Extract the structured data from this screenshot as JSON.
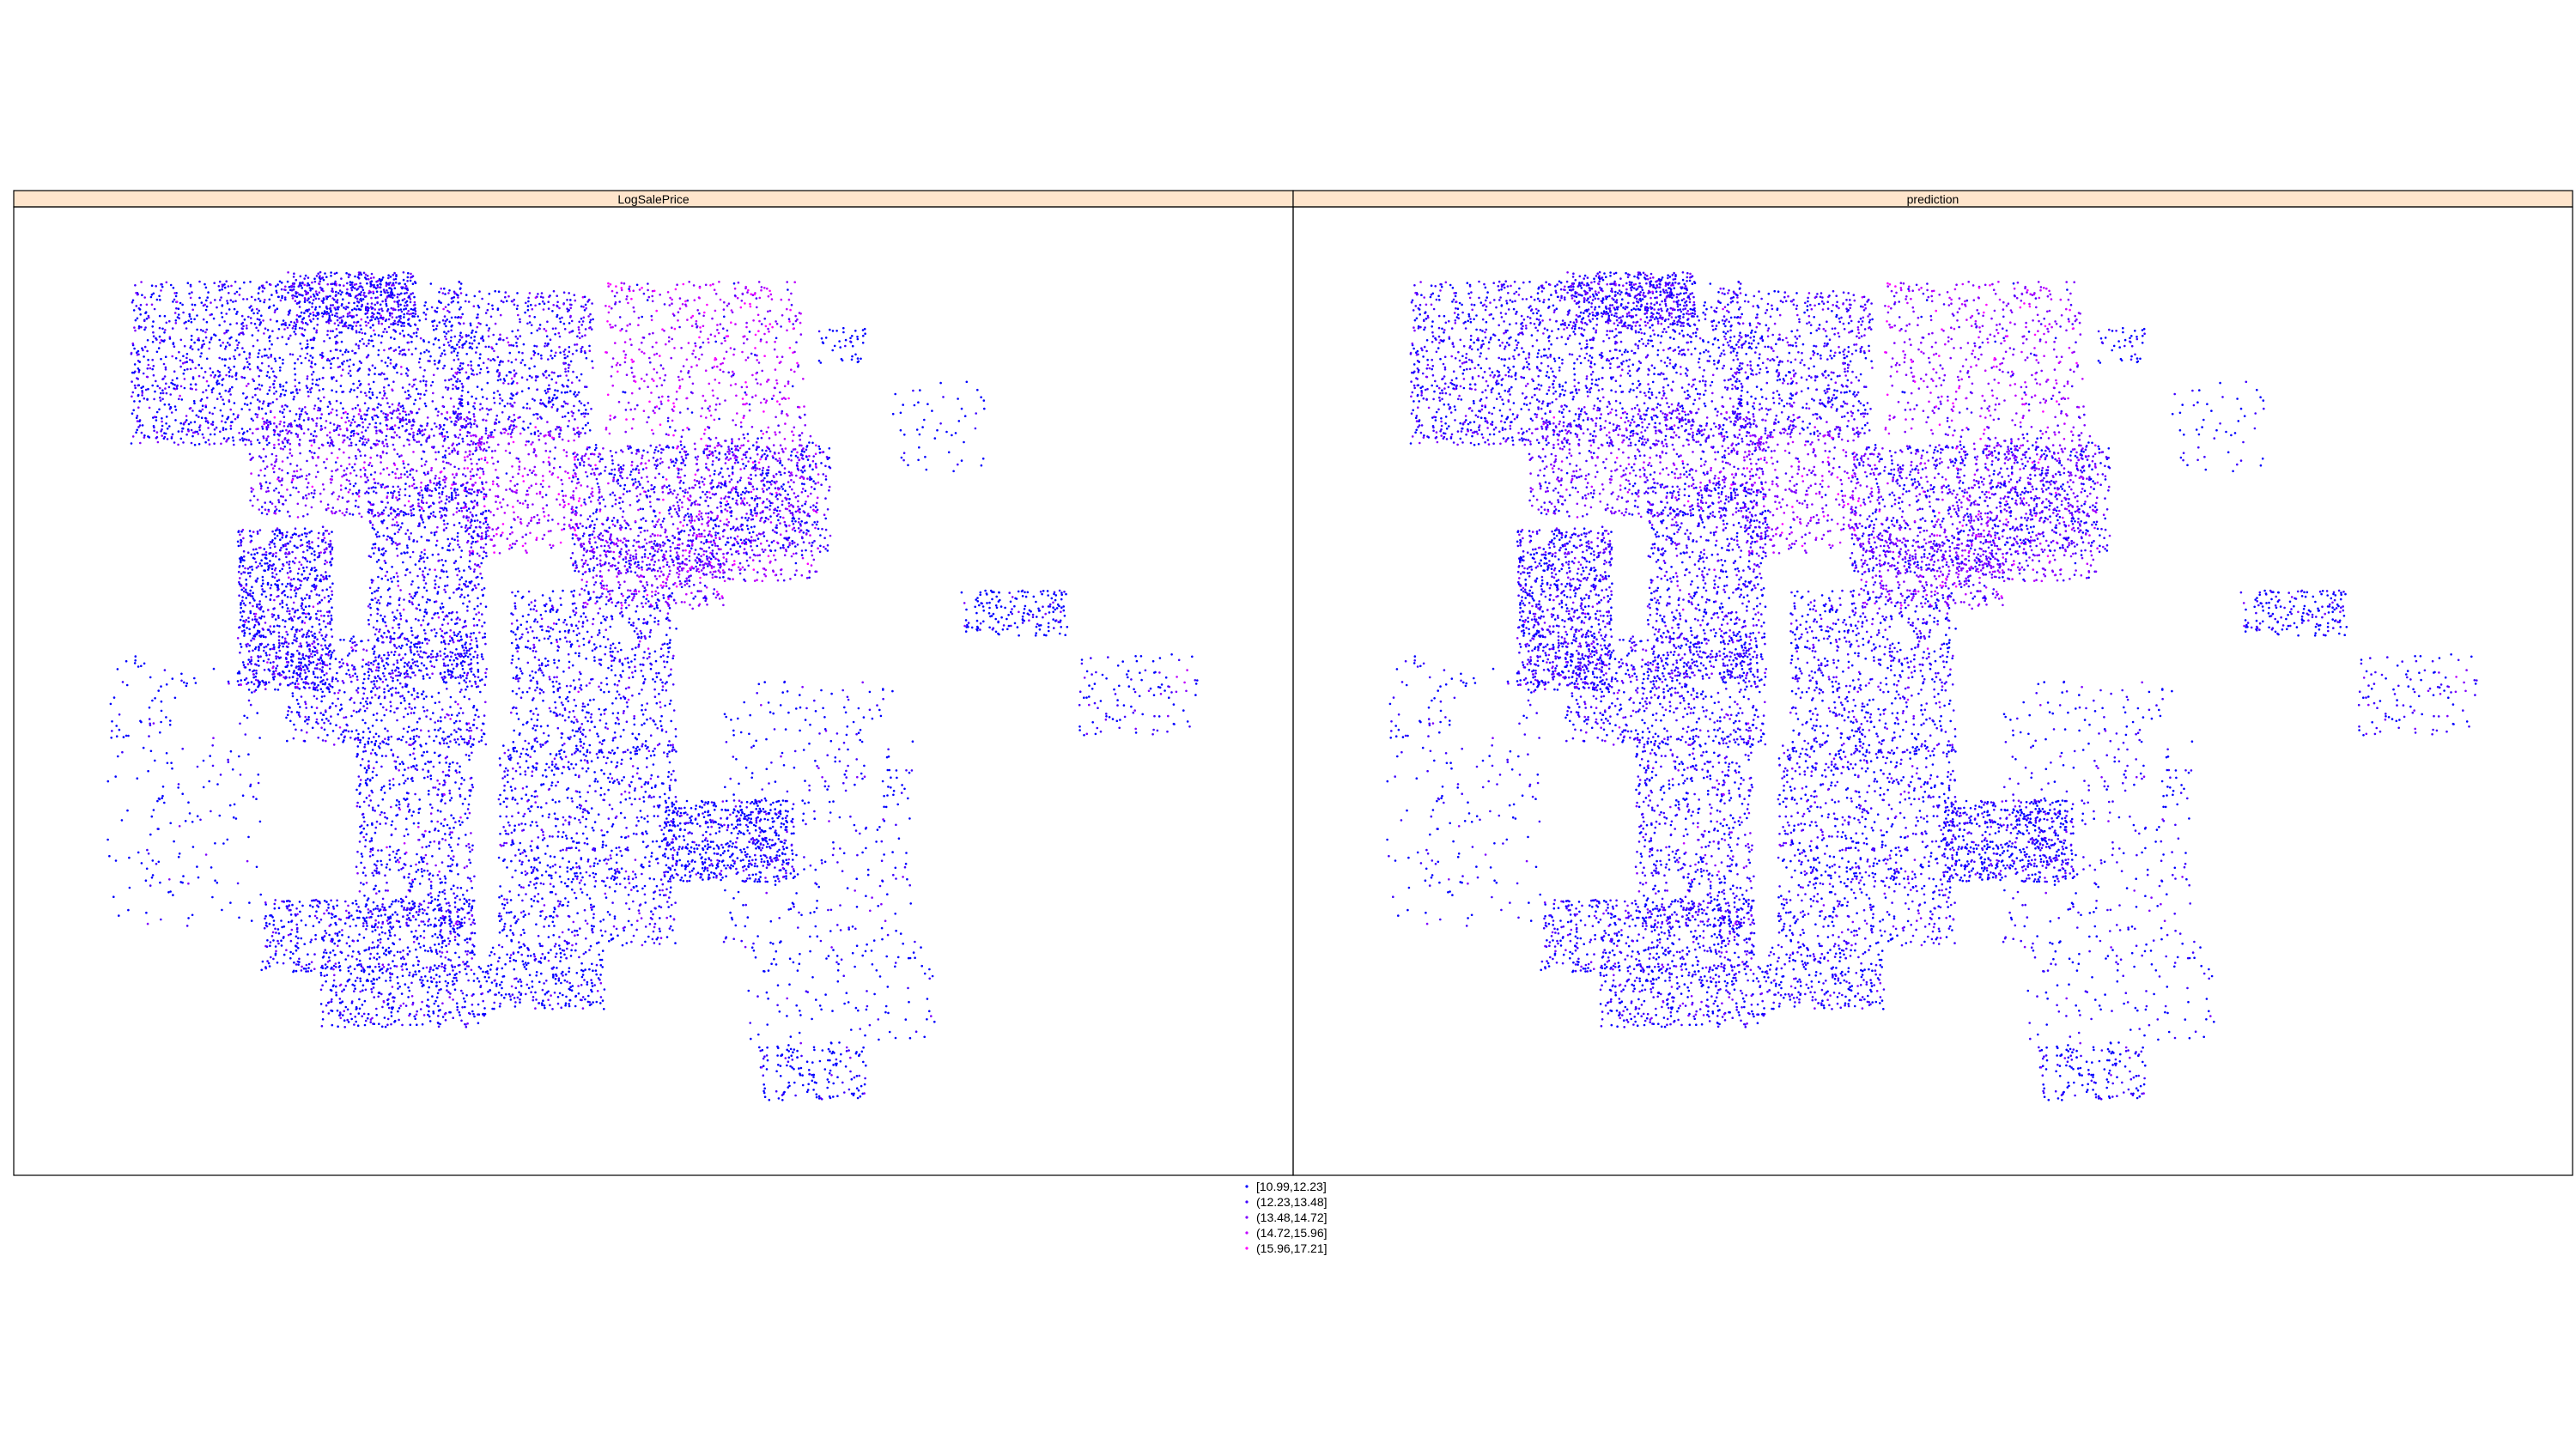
{
  "chart_data": {
    "type": "scatter",
    "panels": [
      {
        "name": "LogSalePrice"
      },
      {
        "name": "prediction"
      }
    ],
    "legend": {
      "position": "bottom",
      "classes": [
        {
          "label": "[10.99,12.23]",
          "color": "#0000ff"
        },
        {
          "label": "(12.23,13.48]",
          "color": "#3f00ff"
        },
        {
          "label": "(13.48,14.72]",
          "color": "#7f00ff"
        },
        {
          "label": "(14.72,15.96]",
          "color": "#bf00ff"
        },
        {
          "label": "(15.96,17.21]",
          "color": "#ff00ff"
        }
      ]
    },
    "strip_color": "#ffe5cc",
    "point_density_note": "",
    "clusters": [
      {
        "x": 0.06,
        "y": 0.04,
        "w": 0.28,
        "h": 0.18,
        "n": 1700,
        "mix": [
          0.5,
          0.34,
          0.14,
          0.02,
          0
        ]
      },
      {
        "x": 0.19,
        "y": 0.03,
        "w": 0.11,
        "h": 0.06,
        "n": 420,
        "mix": [
          0.42,
          0.38,
          0.18,
          0.02,
          0
        ]
      },
      {
        "x": 0.33,
        "y": 0.05,
        "w": 0.12,
        "h": 0.16,
        "n": 620,
        "mix": [
          0.44,
          0.38,
          0.16,
          0.02,
          0
        ]
      },
      {
        "x": 0.46,
        "y": 0.04,
        "w": 0.17,
        "h": 0.17,
        "n": 540,
        "mix": [
          0.06,
          0.14,
          0.32,
          0.36,
          0.12
        ]
      },
      {
        "x": 0.16,
        "y": 0.18,
        "w": 0.2,
        "h": 0.12,
        "n": 700,
        "mix": [
          0.12,
          0.3,
          0.44,
          0.12,
          0.02
        ]
      },
      {
        "x": 0.34,
        "y": 0.2,
        "w": 0.1,
        "h": 0.14,
        "n": 360,
        "mix": [
          0.04,
          0.12,
          0.38,
          0.36,
          0.1
        ]
      },
      {
        "x": 0.43,
        "y": 0.22,
        "w": 0.12,
        "h": 0.14,
        "n": 620,
        "mix": [
          0.28,
          0.34,
          0.28,
          0.08,
          0.02
        ]
      },
      {
        "x": 0.52,
        "y": 0.21,
        "w": 0.12,
        "h": 0.16,
        "n": 520,
        "mix": [
          0.1,
          0.22,
          0.38,
          0.24,
          0.06
        ]
      },
      {
        "x": 0.55,
        "y": 0.22,
        "w": 0.1,
        "h": 0.12,
        "n": 420,
        "mix": [
          0.42,
          0.32,
          0.2,
          0.06,
          0
        ]
      },
      {
        "x": 0.44,
        "y": 0.32,
        "w": 0.12,
        "h": 0.08,
        "n": 360,
        "mix": [
          0.08,
          0.22,
          0.46,
          0.2,
          0.04
        ]
      },
      {
        "x": 0.15,
        "y": 0.31,
        "w": 0.08,
        "h": 0.18,
        "n": 880,
        "mix": [
          0.5,
          0.34,
          0.14,
          0.02,
          0
        ]
      },
      {
        "x": 0.26,
        "y": 0.26,
        "w": 0.1,
        "h": 0.22,
        "n": 820,
        "mix": [
          0.52,
          0.34,
          0.12,
          0.02,
          0
        ]
      },
      {
        "x": 0.19,
        "y": 0.43,
        "w": 0.17,
        "h": 0.12,
        "n": 620,
        "mix": [
          0.54,
          0.34,
          0.1,
          0.02,
          0
        ]
      },
      {
        "x": 0.38,
        "y": 0.38,
        "w": 0.14,
        "h": 0.18,
        "n": 720,
        "mix": [
          0.56,
          0.32,
          0.1,
          0.02,
          0
        ]
      },
      {
        "x": 0.37,
        "y": 0.55,
        "w": 0.15,
        "h": 0.22,
        "n": 900,
        "mix": [
          0.58,
          0.32,
          0.1,
          0,
          0
        ]
      },
      {
        "x": 0.25,
        "y": 0.54,
        "w": 0.1,
        "h": 0.21,
        "n": 620,
        "mix": [
          0.56,
          0.32,
          0.1,
          0.02,
          0
        ]
      },
      {
        "x": 0.17,
        "y": 0.72,
        "w": 0.18,
        "h": 0.08,
        "n": 560,
        "mix": [
          0.6,
          0.3,
          0.1,
          0,
          0
        ]
      },
      {
        "x": 0.51,
        "y": 0.61,
        "w": 0.11,
        "h": 0.09,
        "n": 600,
        "mix": [
          0.68,
          0.24,
          0.08,
          0,
          0
        ]
      },
      {
        "x": 0.22,
        "y": 0.79,
        "w": 0.14,
        "h": 0.07,
        "n": 360,
        "mix": [
          0.62,
          0.28,
          0.1,
          0,
          0
        ]
      },
      {
        "x": 0.36,
        "y": 0.77,
        "w": 0.1,
        "h": 0.07,
        "n": 260,
        "mix": [
          0.66,
          0.28,
          0.06,
          0,
          0
        ]
      },
      {
        "x": 0.76,
        "y": 0.38,
        "w": 0.09,
        "h": 0.05,
        "n": 170,
        "mix": [
          0.74,
          0.2,
          0.06,
          0,
          0
        ]
      },
      {
        "x": 0.86,
        "y": 0.45,
        "w": 0.1,
        "h": 0.09,
        "n": 110,
        "mix": [
          0.6,
          0.24,
          0.12,
          0.04,
          0
        ]
      },
      {
        "x": 0.59,
        "y": 0.88,
        "w": 0.09,
        "h": 0.06,
        "n": 150,
        "mix": [
          0.76,
          0.2,
          0.04,
          0,
          0
        ]
      },
      {
        "x": 0.64,
        "y": 0.09,
        "w": 0.04,
        "h": 0.04,
        "n": 40,
        "mix": [
          0.9,
          0.1,
          0,
          0,
          0
        ]
      },
      {
        "x": 0.7,
        "y": 0.15,
        "w": 0.08,
        "h": 0.1,
        "n": 50,
        "mix": [
          0.8,
          0.16,
          0.04,
          0,
          0
        ]
      },
      {
        "x": 0.04,
        "y": 0.45,
        "w": 0.13,
        "h": 0.3,
        "n": 200,
        "mix": [
          0.72,
          0.22,
          0.06,
          0,
          0
        ]
      },
      {
        "x": 0.56,
        "y": 0.48,
        "w": 0.16,
        "h": 0.3,
        "n": 330,
        "mix": [
          0.7,
          0.24,
          0.06,
          0,
          0
        ]
      },
      {
        "x": 0.58,
        "y": 0.76,
        "w": 0.16,
        "h": 0.12,
        "n": 120,
        "mix": [
          0.8,
          0.16,
          0.04,
          0,
          0
        ]
      }
    ]
  }
}
